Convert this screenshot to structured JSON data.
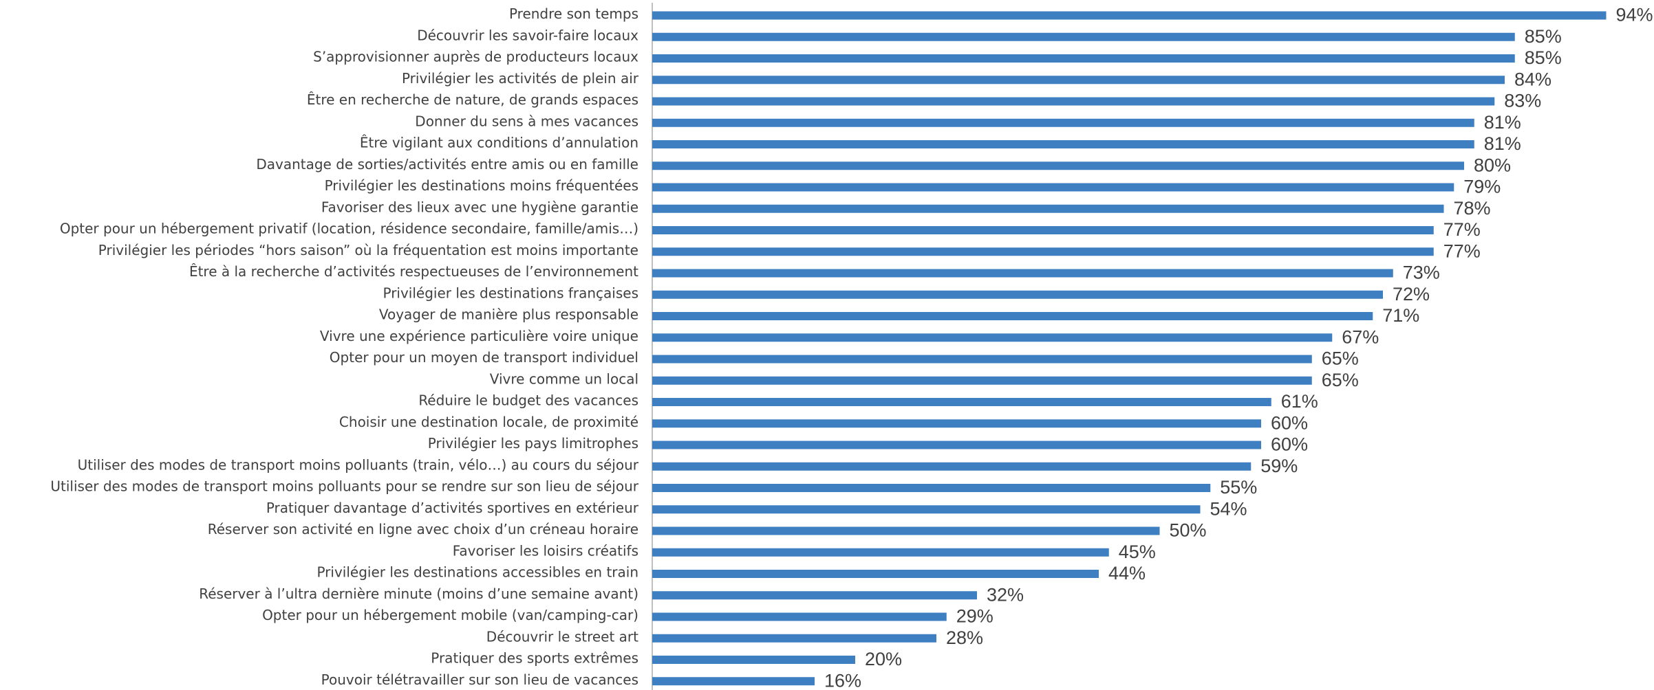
{
  "chart_data": {
    "type": "barh",
    "color": "#3d7fc1",
    "categories": [
      "Prendre son temps",
      "Découvrir les savoir-faire locaux",
      "S’approvisionner auprès de producteurs locaux",
      "Privilégier les activités de plein air",
      "Être en recherche de nature, de grands espaces",
      "Donner du sens à mes vacances",
      "Être vigilant aux conditions d’annulation",
      "Davantage de sorties/activités entre amis ou en famille",
      "Privilégier les destinations moins fréquentées",
      "Favoriser des lieux avec une hygiène garantie",
      "Opter pour un hébergement privatif (location, résidence secondaire, famille/amis…)",
      "Privilégier les périodes “hors saison” où la fréquentation est moins importante",
      "Être à la recherche d’activités respectueuses de l’environnement",
      "Privilégier les destinations françaises",
      "Voyager de manière plus responsable",
      "Vivre une expérience particulière voire unique",
      "Opter pour un moyen de transport individuel",
      "Vivre comme un local",
      "Réduire le budget des vacances",
      "Choisir une destination locale, de proximité",
      "Privilégier les pays limitrophes",
      "Utiliser des modes de transport moins polluants (train, vélo…) au cours du séjour",
      "Utiliser des modes de transport moins polluants pour se rendre sur son lieu de séjour",
      "Pratiquer davantage d’activités sportives en extérieur",
      "Réserver son activité en ligne avec choix d’un créneau horaire",
      "Favoriser les loisirs créatifs",
      "Privilégier les destinations accessibles en train",
      "Réserver à l’ultra dernière minute (moins d’une semaine avant)",
      "Opter pour un hébergement mobile (van/camping-car)",
      "Découvrir le street art",
      "Pratiquer des sports extrêmes",
      "Pouvoir télétravailler sur son lieu de vacances"
    ],
    "values": [
      94,
      85,
      85,
      84,
      83,
      81,
      81,
      80,
      79,
      78,
      77,
      77,
      73,
      72,
      71,
      67,
      65,
      65,
      61,
      60,
      60,
      59,
      55,
      54,
      50,
      45,
      44,
      32,
      29,
      28,
      20,
      16
    ],
    "value_labels": [
      "94%",
      "85%",
      "85%",
      "84%",
      "83%",
      "81%",
      "81%",
      "80%",
      "79%",
      "78%",
      "77%",
      "77%",
      "73%",
      "72%",
      "71%",
      "67%",
      "65%",
      "65%",
      "61%",
      "60%",
      "60%",
      "59%",
      "55%",
      "54%",
      "50%",
      "45%",
      "44%",
      "32%",
      "29%",
      "28%",
      "20%",
      "16%"
    ]
  }
}
